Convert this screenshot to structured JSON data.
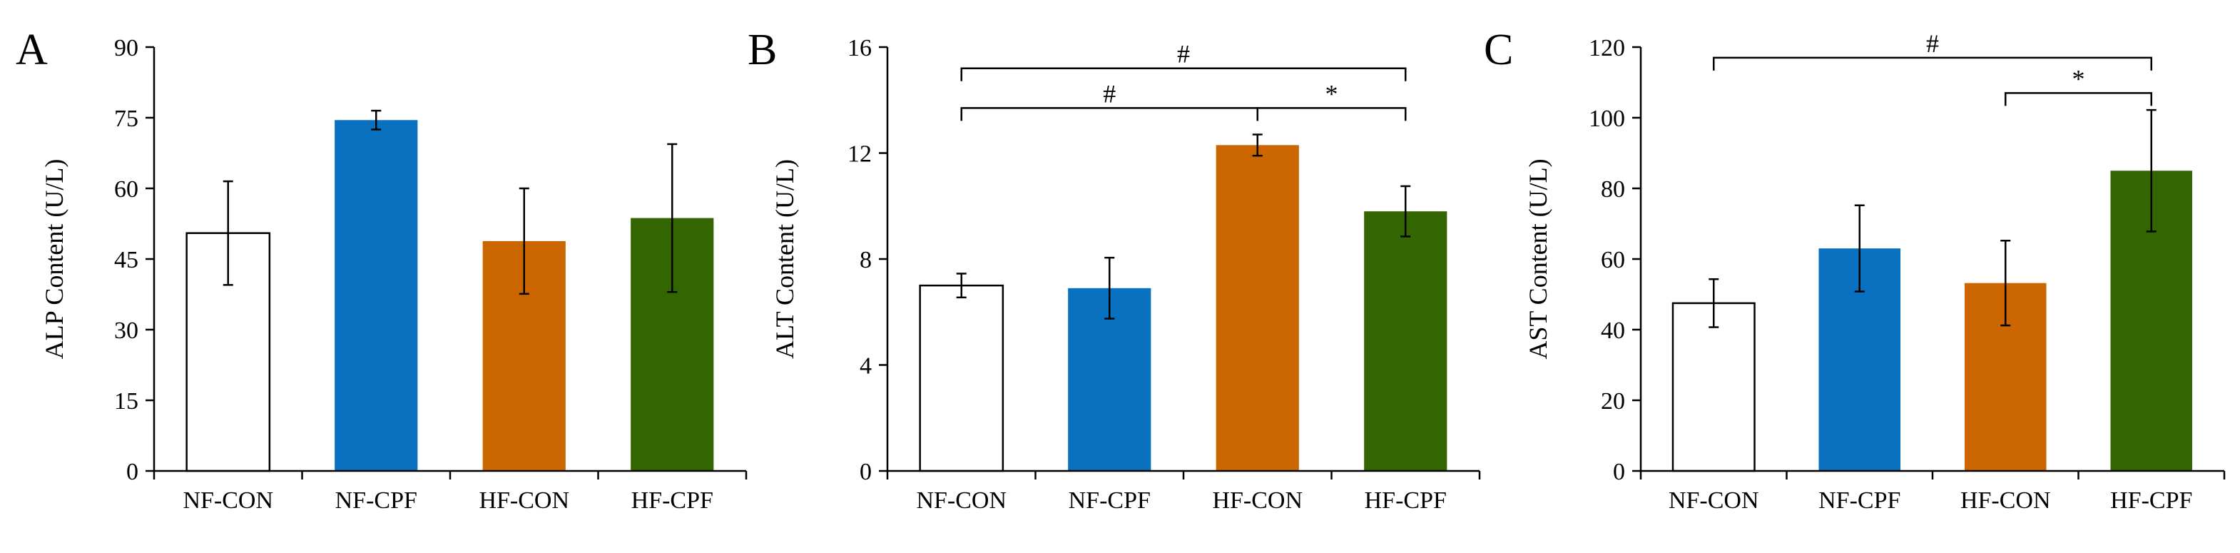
{
  "chart_data": [
    {
      "type": "bar",
      "panel_label": "A",
      "categories": [
        "NF-CON",
        "NF-CPF",
        "HF-CON",
        "HF-CPF"
      ],
      "values": [
        50.5,
        74.5,
        48.8,
        53.7
      ],
      "errors": [
        11.0,
        2.0,
        11.2,
        15.7
      ],
      "ylabel": "ALP Content (U/L)",
      "ylim": [
        0,
        90
      ],
      "yticks": [
        "0",
        "15",
        "30",
        "45",
        "60",
        "75",
        "90"
      ],
      "bar_colors": [
        "#ffffff",
        "#0a70c0",
        "#cc6600",
        "#336600"
      ],
      "brackets": []
    },
    {
      "type": "bar",
      "panel_label": "B",
      "categories": [
        "NF-CON",
        "NF-CPF",
        "HF-CON",
        "HF-CPF"
      ],
      "values": [
        7.0,
        6.9,
        12.3,
        9.8
      ],
      "errors": [
        0.45,
        1.15,
        0.4,
        0.95
      ],
      "ylabel": "ALT Content (U/L)",
      "ylim": [
        0,
        16
      ],
      "yticks": [
        "0",
        "4",
        "8",
        "12",
        "16"
      ],
      "bar_colors": [
        "#ffffff",
        "#0a70c0",
        "#cc6600",
        "#336600"
      ],
      "brackets": [
        {
          "from": 0,
          "to": 3,
          "y": 15.2,
          "label": "#"
        },
        {
          "from": 0,
          "to": 2,
          "y": 13.7,
          "label": "#"
        },
        {
          "from": 2,
          "to": 3,
          "y": 13.7,
          "label": "*"
        }
      ]
    },
    {
      "type": "bar",
      "panel_label": "C",
      "categories": [
        "NF-CON",
        "NF-CPF",
        "HF-CON",
        "HF-CPF"
      ],
      "values": [
        47.5,
        63.0,
        53.2,
        85.0
      ],
      "errors": [
        6.8,
        12.2,
        12.0,
        17.2
      ],
      "ylabel": "AST Content (U/L)",
      "ylim": [
        0,
        120
      ],
      "yticks": [
        "0",
        "20",
        "40",
        "60",
        "80",
        "100",
        "120"
      ],
      "bar_colors": [
        "#ffffff",
        "#0a70c0",
        "#cc6600",
        "#336600"
      ],
      "brackets": [
        {
          "from": 0,
          "to": 3,
          "y": 117,
          "label": "#"
        },
        {
          "from": 2,
          "to": 3,
          "y": 107,
          "label": "*"
        }
      ]
    }
  ]
}
